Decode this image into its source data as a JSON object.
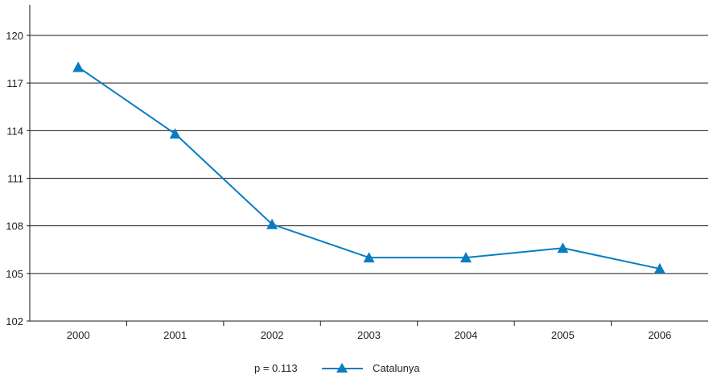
{
  "chart_data": {
    "type": "line",
    "x": [
      "2000",
      "2001",
      "2002",
      "2003",
      "2004",
      "2005",
      "2006"
    ],
    "series": [
      {
        "name": "Catalunya",
        "values": [
          118.0,
          113.8,
          108.1,
          106.0,
          106.0,
          106.6,
          105.3
        ],
        "color": "#0a7cc1",
        "marker": "triangle"
      }
    ],
    "ylim": [
      102,
      120
    ],
    "yticks": [
      102,
      105,
      108,
      111,
      114,
      117,
      120
    ],
    "grid": "horizontal",
    "legend": {
      "note": "p = 0.113",
      "placement": "bottom-center"
    },
    "title": "",
    "xlabel": "",
    "ylabel": ""
  }
}
